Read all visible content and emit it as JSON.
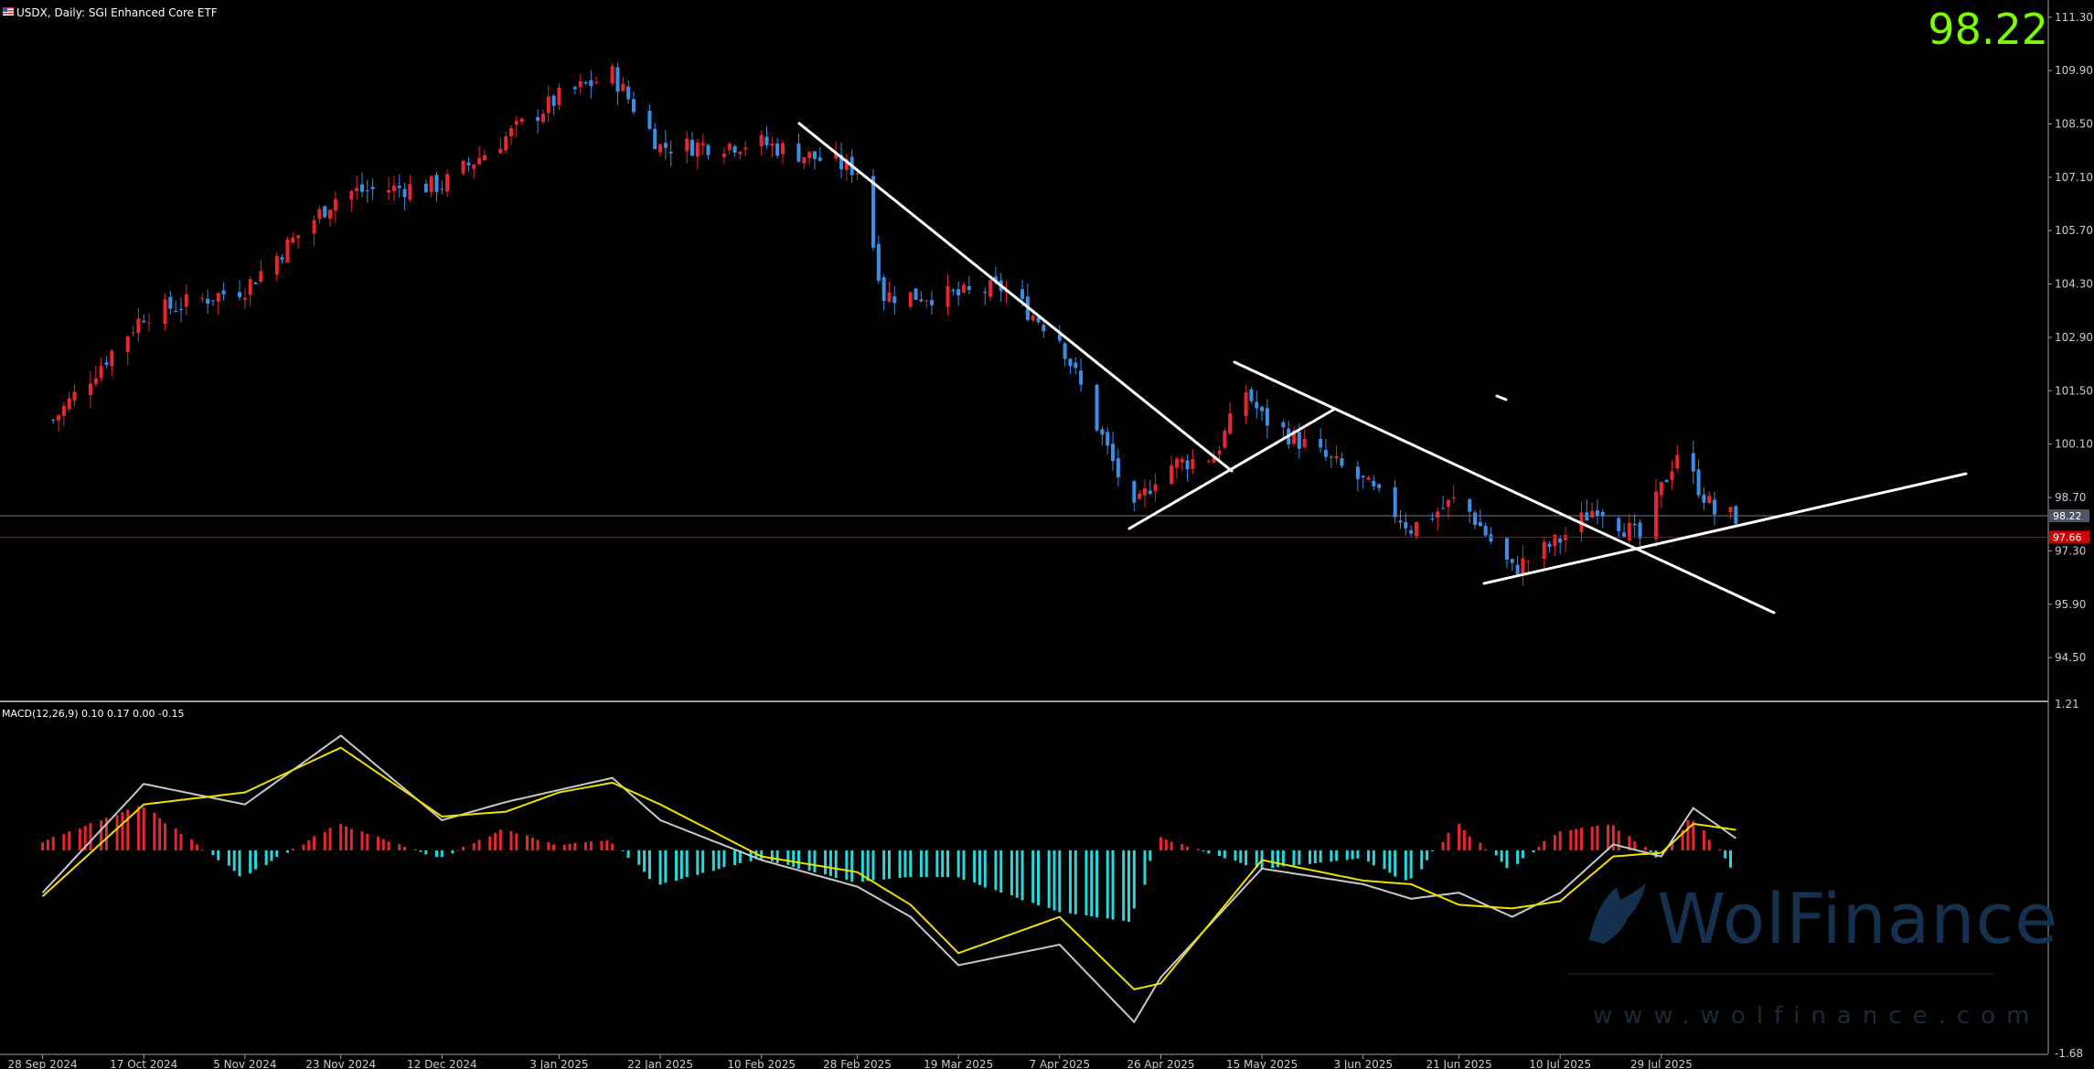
{
  "header": {
    "symbol_label": "USDX, Daily:  SGI Enhanced Core ETF",
    "current_price_big": "98.22",
    "macd_label": "MACD(12,26,9) 0.10 0.17 0.00 -0.15"
  },
  "watermark": {
    "name": "WolFinance",
    "url": "www.wolfinance.com"
  },
  "colors": {
    "background": "#000000",
    "bull_candle": "#e8262d",
    "bear_candle": "#3a8ee6",
    "trendline": "#ffffff",
    "macd_line": "#c8c8c8",
    "signal_line": "#f0e000",
    "hist_positive": "#e8262d",
    "hist_negative": "#27d8dc",
    "current_price_line": "#6e7a8a",
    "ref_price_line": "#c00000",
    "big_price": "#7cfc00"
  },
  "chart_data": [
    {
      "type": "candlestick",
      "panel": "price",
      "y_axis_ticks": [
        "111.30",
        "109.90",
        "108.50",
        "107.10",
        "105.70",
        "104.30",
        "102.90",
        "101.50",
        "100.10",
        "98.70",
        "97.30",
        "95.90",
        "94.50"
      ],
      "ylim": [
        93.4,
        111.75
      ],
      "x_axis_labels": [
        "28 Sep 2024",
        "17 Oct 2024",
        "5 Nov 2024",
        "23 Nov 2024",
        "12 Dec 2024",
        "3 Jan 2025",
        "22 Jan 2025",
        "10 Feb 2025",
        "28 Feb 2025",
        "19 Mar 2025",
        "7 Apr 2025",
        "26 Apr 2025",
        "15 May 2025",
        "3 Jun 2025",
        "21 Jun 2025",
        "10 Jul 2025",
        "29 Jul 2025"
      ],
      "current_price_label": "98.22",
      "ref_price_label": "97.66",
      "key_closes": [
        {
          "date": "28 Sep 2024",
          "close": 100.4
        },
        {
          "date": "17 Oct 2024",
          "close": 103.5
        },
        {
          "date": "5 Nov 2024",
          "close": 104.2
        },
        {
          "date": "23 Nov 2024",
          "close": 106.7
        },
        {
          "date": "12 Dec 2024",
          "close": 106.9
        },
        {
          "date": "3 Jan 2025",
          "close": 109.2
        },
        {
          "date": "13 Jan 2025",
          "close": 109.8
        },
        {
          "date": "22 Jan 2025",
          "close": 107.9
        },
        {
          "date": "10 Feb 2025",
          "close": 108.0
        },
        {
          "date": "28 Feb 2025",
          "close": 107.3
        },
        {
          "date": "5 Mar 2025",
          "close": 104.0
        },
        {
          "date": "19 Mar 2025",
          "close": 104.0
        },
        {
          "date": "27 Mar 2025",
          "close": 104.2
        },
        {
          "date": "7 Apr 2025",
          "close": 102.9
        },
        {
          "date": "21 Apr 2025",
          "close": 98.3
        },
        {
          "date": "26 Apr 2025",
          "close": 99.5
        },
        {
          "date": "6 May 2025",
          "close": 99.8
        },
        {
          "date": "12 May 2025",
          "close": 101.5
        },
        {
          "date": "15 May 2025",
          "close": 100.8
        },
        {
          "date": "3 Jun 2025",
          "close": 99.1
        },
        {
          "date": "12 Jun 2025",
          "close": 97.9
        },
        {
          "date": "21 Jun 2025",
          "close": 98.7
        },
        {
          "date": "1 Jul 2025",
          "close": 96.8
        },
        {
          "date": "10 Jul 2025",
          "close": 97.6
        },
        {
          "date": "17 Jul 2025",
          "close": 98.5
        },
        {
          "date": "25 Jul 2025",
          "close": 97.6
        },
        {
          "date": "1 Aug 2025",
          "close": 99.9
        },
        {
          "date": "8 Aug 2025",
          "close": 98.3
        },
        {
          "date": "12 Aug 2025",
          "close": 98.2
        }
      ]
    },
    {
      "type": "line+bar",
      "panel": "macd",
      "y_axis_ticks": [
        "1.21",
        "-1.68"
      ],
      "ylim": [
        -1.68,
        1.21
      ],
      "series": [
        {
          "name": "MACD",
          "points": [
            {
              "date": "28 Sep 2024",
              "value": -0.35
            },
            {
              "date": "17 Oct 2024",
              "value": 0.55
            },
            {
              "date": "5 Nov 2024",
              "value": 0.38
            },
            {
              "date": "23 Nov 2024",
              "value": 0.95
            },
            {
              "date": "12 Dec 2024",
              "value": 0.25
            },
            {
              "date": "24 Dec 2024",
              "value": 0.4
            },
            {
              "date": "3 Jan 2025",
              "value": 0.5
            },
            {
              "date": "13 Jan 2025",
              "value": 0.6
            },
            {
              "date": "22 Jan 2025",
              "value": 0.25
            },
            {
              "date": "10 Feb 2025",
              "value": -0.08
            },
            {
              "date": "28 Feb 2025",
              "value": -0.3
            },
            {
              "date": "10 Mar 2025",
              "value": -0.55
            },
            {
              "date": "19 Mar 2025",
              "value": -0.95
            },
            {
              "date": "7 Apr 2025",
              "value": -0.78
            },
            {
              "date": "21 Apr 2025",
              "value": -1.42
            },
            {
              "date": "26 Apr 2025",
              "value": -1.05
            },
            {
              "date": "15 May 2025",
              "value": -0.15
            },
            {
              "date": "3 Jun 2025",
              "value": -0.28
            },
            {
              "date": "12 Jun 2025",
              "value": -0.4
            },
            {
              "date": "21 Jun 2025",
              "value": -0.35
            },
            {
              "date": "1 Jul 2025",
              "value": -0.55
            },
            {
              "date": "10 Jul 2025",
              "value": -0.35
            },
            {
              "date": "20 Jul 2025",
              "value": 0.05
            },
            {
              "date": "29 Jul 2025",
              "value": -0.05
            },
            {
              "date": "4 Aug 2025",
              "value": 0.35
            },
            {
              "date": "12 Aug 2025",
              "value": 0.1
            }
          ]
        },
        {
          "name": "Signal",
          "points": [
            {
              "date": "28 Sep 2024",
              "value": -0.38
            },
            {
              "date": "17 Oct 2024",
              "value": 0.38
            },
            {
              "date": "5 Nov 2024",
              "value": 0.48
            },
            {
              "date": "23 Nov 2024",
              "value": 0.85
            },
            {
              "date": "12 Dec 2024",
              "value": 0.28
            },
            {
              "date": "24 Dec 2024",
              "value": 0.32
            },
            {
              "date": "3 Jan 2025",
              "value": 0.48
            },
            {
              "date": "13 Jan 2025",
              "value": 0.56
            },
            {
              "date": "22 Jan 2025",
              "value": 0.38
            },
            {
              "date": "10 Feb 2025",
              "value": -0.05
            },
            {
              "date": "28 Feb 2025",
              "value": -0.18
            },
            {
              "date": "10 Mar 2025",
              "value": -0.45
            },
            {
              "date": "19 Mar 2025",
              "value": -0.85
            },
            {
              "date": "7 Apr 2025",
              "value": -0.55
            },
            {
              "date": "21 Apr 2025",
              "value": -1.15
            },
            {
              "date": "26 Apr 2025",
              "value": -1.1
            },
            {
              "date": "15 May 2025",
              "value": -0.08
            },
            {
              "date": "3 Jun 2025",
              "value": -0.25
            },
            {
              "date": "12 Jun 2025",
              "value": -0.28
            },
            {
              "date": "21 Jun 2025",
              "value": -0.45
            },
            {
              "date": "1 Jul 2025",
              "value": -0.48
            },
            {
              "date": "10 Jul 2025",
              "value": -0.42
            },
            {
              "date": "20 Jul 2025",
              "value": -0.05
            },
            {
              "date": "29 Jul 2025",
              "value": -0.02
            },
            {
              "date": "4 Aug 2025",
              "value": 0.22
            },
            {
              "date": "12 Aug 2025",
              "value": 0.17
            }
          ]
        }
      ]
    }
  ]
}
